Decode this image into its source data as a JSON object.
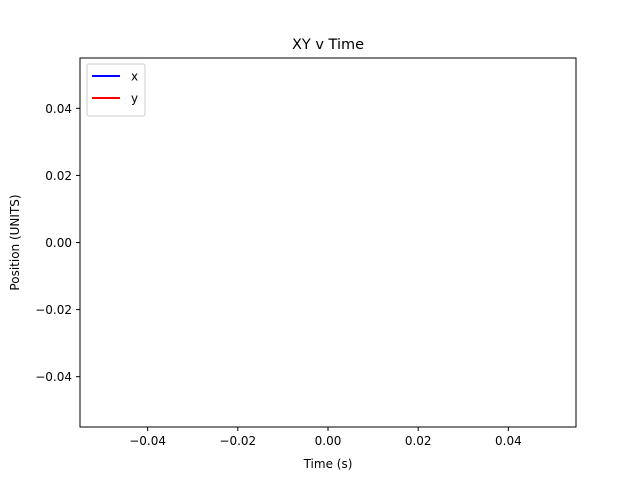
{
  "chart_data": {
    "type": "line",
    "title": "XY v Time",
    "xlabel": "Time (s)",
    "ylabel": "Position (UNITS)",
    "xlim": [
      -0.055,
      0.055
    ],
    "ylim": [
      -0.055,
      0.055
    ],
    "x_ticks": [
      -0.04,
      -0.02,
      0.0,
      0.02,
      0.04
    ],
    "x_tick_labels": [
      "−0.04",
      "−0.02",
      "0.00",
      "0.02",
      "0.04"
    ],
    "y_ticks": [
      -0.04,
      -0.02,
      0.0,
      0.02,
      0.04
    ],
    "y_tick_labels": [
      "−0.04",
      "−0.02",
      "0.00",
      "0.02",
      "0.04"
    ],
    "grid": false,
    "legend_position": "top-left",
    "series": [
      {
        "name": "x",
        "color": "#0000ff",
        "x": [],
        "values": []
      },
      {
        "name": "y",
        "color": "#ff0000",
        "x": [],
        "values": []
      }
    ]
  }
}
